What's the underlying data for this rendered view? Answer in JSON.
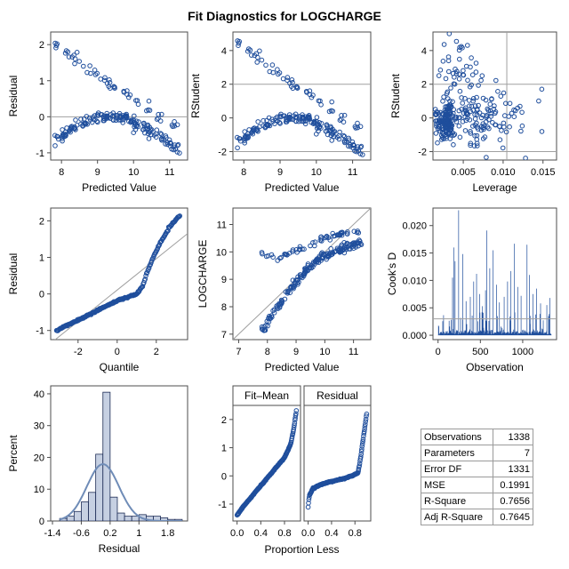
{
  "figure": {
    "title": "Fit Diagnostics for LOGCHARGE"
  },
  "colors": {
    "marker": "#1f4e9c",
    "ref_line": "#a0a0a0",
    "hist_fill": "#c6d0e2",
    "hist_edge": "#1c2b55",
    "normal_curve": "#6f8cb7",
    "needle": "#1f4e9c"
  },
  "chart_data": [
    {
      "id": "resid-vs-pred",
      "type": "scatter",
      "xlabel": "Predicted Value",
      "ylabel": "Residual",
      "xlim": [
        7.7,
        11.5
      ],
      "ylim": [
        -1.2,
        2.35
      ],
      "xticks": [
        "8",
        "9",
        "10",
        "11"
      ],
      "yticks": [
        "-1",
        "0",
        "1",
        "2"
      ],
      "xtick_values": [
        8,
        9,
        10,
        11
      ],
      "ytick_values": [
        -1,
        0,
        1,
        2
      ],
      "ref_lines": {
        "y": [
          0
        ]
      },
      "bands": [
        {
          "x": [
            7.8,
            8.2,
            8.8,
            9.3,
            9.8,
            10.3,
            10.8,
            11.3
          ],
          "y": [
            -0.72,
            -0.38,
            -0.12,
            0.02,
            -0.05,
            -0.3,
            -0.6,
            -0.92
          ],
          "n": 170,
          "spread": 0.14
        },
        {
          "x": [
            7.8,
            8.3,
            8.8,
            9.3,
            9.8,
            10.3,
            10.8,
            11.3
          ],
          "y": [
            2.05,
            1.7,
            1.3,
            0.95,
            0.6,
            0.3,
            -0.05,
            -0.4
          ],
          "n": 55,
          "spread": 0.14
        }
      ]
    },
    {
      "id": "rstudent-vs-pred",
      "type": "scatter",
      "xlabel": "Predicted Value",
      "ylabel": "RStudent",
      "xlim": [
        7.7,
        11.5
      ],
      "ylim": [
        -2.5,
        5.1
      ],
      "xticks": [
        "8",
        "9",
        "10",
        "11"
      ],
      "yticks": [
        "-2",
        "0",
        "2",
        "4"
      ],
      "xtick_values": [
        8,
        9,
        10,
        11
      ],
      "ytick_values": [
        -2,
        0,
        2,
        4
      ],
      "ref_lines": {
        "y": [
          -2,
          2
        ]
      },
      "bands": [
        {
          "x": [
            7.8,
            8.2,
            8.8,
            9.3,
            9.8,
            10.3,
            10.8,
            11.3
          ],
          "y": [
            -1.6,
            -0.85,
            -0.27,
            0.04,
            -0.11,
            -0.67,
            -1.35,
            -2.0
          ],
          "n": 170,
          "spread": 0.3
        },
        {
          "x": [
            7.8,
            8.3,
            8.8,
            9.3,
            9.8,
            10.3,
            10.8,
            11.3
          ],
          "y": [
            4.6,
            3.8,
            2.9,
            2.1,
            1.35,
            0.67,
            -0.1,
            -0.9
          ],
          "n": 55,
          "spread": 0.3
        }
      ]
    },
    {
      "id": "rstudent-vs-leverage",
      "type": "scatter",
      "xlabel": "Leverage",
      "ylabel": "RStudent",
      "xlim": [
        0.0012,
        0.0167
      ],
      "ylim": [
        -2.5,
        5.1
      ],
      "xticks": [
        "0.005",
        "0.010",
        "0.015"
      ],
      "yticks": [
        "-2",
        "0",
        "2",
        "4"
      ],
      "xtick_values": [
        0.005,
        0.01,
        0.015
      ],
      "ytick_values": [
        -2,
        0,
        2,
        4
      ],
      "ref_lines": {
        "y": [
          -2,
          2
        ],
        "x": [
          0.01046
        ]
      },
      "clouds": [
        {
          "cx": 0.0028,
          "cy": -0.2,
          "sx": 0.0006,
          "sy": 0.55,
          "n": 150
        },
        {
          "cx": 0.0065,
          "cy": -0.1,
          "sx": 0.002,
          "sy": 0.9,
          "n": 110
        },
        {
          "cx": 0.0045,
          "cy": 2.7,
          "sx": 0.0015,
          "sy": 1.0,
          "n": 45
        },
        {
          "cx": 0.012,
          "cy": 0.2,
          "sx": 0.0018,
          "sy": 1.0,
          "n": 22
        }
      ]
    },
    {
      "id": "qq-residual",
      "type": "scatter",
      "xlabel": "Quantile",
      "ylabel": "Residual",
      "xlim": [
        -3.4,
        3.6
      ],
      "ylim": [
        -1.25,
        2.35
      ],
      "xticks": [
        "-2",
        "0",
        "2"
      ],
      "yticks": [
        "-1",
        "0",
        "1",
        "2"
      ],
      "xtick_values": [
        -2,
        0,
        2
      ],
      "ytick_values": [
        -1,
        0,
        1,
        2
      ],
      "ref_line_diag": {
        "x": [
          -3.4,
          3.6
        ],
        "y": [
          -1.35,
          1.65
        ]
      },
      "curve": {
        "x": [
          -3.1,
          -2.0,
          -1.0,
          0.0,
          1.0,
          1.3,
          1.5,
          1.8,
          2.2,
          2.7,
          3.2
        ],
        "y": [
          -1.0,
          -0.72,
          -0.45,
          -0.18,
          0.0,
          0.2,
          0.55,
          0.95,
          1.4,
          1.85,
          2.15
        ]
      }
    },
    {
      "id": "obs-vs-pred",
      "type": "scatter",
      "xlabel": "Predicted Value",
      "ylabel": "LOGCHARGE",
      "xlim": [
        6.8,
        11.6
      ],
      "ylim": [
        6.8,
        11.6
      ],
      "xticks": [
        "7",
        "8",
        "9",
        "10",
        "11"
      ],
      "yticks": [
        "7",
        "8",
        "9",
        "10",
        "11"
      ],
      "xtick_values": [
        7,
        8,
        9,
        10,
        11
      ],
      "ytick_values": [
        7,
        8,
        9,
        10,
        11
      ],
      "ref_line_diag": {
        "x": [
          6.8,
          11.6
        ],
        "y": [
          6.8,
          11.6
        ]
      },
      "bands": [
        {
          "x": [
            7.8,
            8.3,
            8.8,
            9.3,
            9.8,
            10.3,
            10.8,
            11.3
          ],
          "y": [
            7.1,
            7.9,
            8.65,
            9.3,
            9.75,
            10.0,
            10.2,
            10.35
          ],
          "n": 180,
          "spread": 0.14
        },
        {
          "x": [
            7.8,
            8.3,
            8.8,
            9.3,
            9.8,
            10.3,
            10.8,
            11.3
          ],
          "y": [
            9.95,
            9.8,
            9.9,
            10.2,
            10.45,
            10.6,
            10.75,
            10.8
          ],
          "n": 60,
          "spread": 0.12
        }
      ]
    },
    {
      "id": "cooks-d",
      "type": "needle",
      "xlabel": "Observation",
      "ylabel": "Cook's D",
      "xlim": [
        -60,
        1400
      ],
      "ylim": [
        -0.0008,
        0.0232
      ],
      "xticks": [
        "0",
        "500",
        "1000"
      ],
      "yticks": [
        "0.000",
        "0.005",
        "0.010",
        "0.015",
        "0.020"
      ],
      "xtick_values": [
        0,
        500,
        1000
      ],
      "ytick_values": [
        0,
        0.005,
        0.01,
        0.015,
        0.02
      ],
      "ref_lines": {
        "y": [
          0.003
        ]
      },
      "n_obs": 1338,
      "baseline_max": 0.0012,
      "spikes": [
        {
          "obs": 170,
          "value": 0.0105
        },
        {
          "obs": 185,
          "value": 0.016
        },
        {
          "obs": 200,
          "value": 0.0135
        },
        {
          "obs": 243,
          "value": 0.0228
        },
        {
          "obs": 290,
          "value": 0.0148
        },
        {
          "obs": 330,
          "value": 0.0062
        },
        {
          "obs": 380,
          "value": 0.007
        },
        {
          "obs": 420,
          "value": 0.0098
        },
        {
          "obs": 455,
          "value": 0.0112
        },
        {
          "obs": 490,
          "value": 0.0075
        },
        {
          "obs": 525,
          "value": 0.0053
        },
        {
          "obs": 560,
          "value": 0.0082
        },
        {
          "obs": 577,
          "value": 0.0191
        },
        {
          "obs": 610,
          "value": 0.0122
        },
        {
          "obs": 650,
          "value": 0.0155
        },
        {
          "obs": 690,
          "value": 0.0092
        },
        {
          "obs": 725,
          "value": 0.006
        },
        {
          "obs": 780,
          "value": 0.007
        },
        {
          "obs": 820,
          "value": 0.0098
        },
        {
          "obs": 860,
          "value": 0.0117
        },
        {
          "obs": 902,
          "value": 0.0167
        },
        {
          "obs": 940,
          "value": 0.0088
        },
        {
          "obs": 980,
          "value": 0.0072
        },
        {
          "obs": 1050,
          "value": 0.0165
        },
        {
          "obs": 1080,
          "value": 0.011
        },
        {
          "obs": 1120,
          "value": 0.0075
        },
        {
          "obs": 1165,
          "value": 0.0085
        },
        {
          "obs": 1210,
          "value": 0.0058
        },
        {
          "obs": 1285,
          "value": 0.0055
        },
        {
          "obs": 1320,
          "value": 0.0068
        }
      ]
    },
    {
      "id": "residual-histogram",
      "type": "bar",
      "xlabel": "Residual",
      "ylabel": "Percent",
      "xlim": [
        -1.45,
        2.35
      ],
      "ylim": [
        0,
        42.5
      ],
      "xticks": [
        "-1.4",
        "-0.6",
        "0.2",
        "1",
        "1.8"
      ],
      "yticks": [
        "0",
        "10",
        "20",
        "30",
        "40"
      ],
      "xtick_values": [
        -1.4,
        -0.6,
        0.2,
        1.0,
        1.8
      ],
      "ytick_values": [
        0,
        10,
        20,
        30,
        40
      ],
      "bin_edges": [
        -1.2,
        -1.0,
        -0.8,
        -0.6,
        -0.4,
        -0.2,
        0.0,
        0.2,
        0.4,
        0.6,
        0.8,
        1.0,
        1.2,
        1.4,
        1.6,
        1.8,
        2.0,
        2.2
      ],
      "values": [
        0.8,
        1.5,
        3.0,
        6.0,
        9.0,
        21.0,
        40.5,
        7.5,
        2.5,
        1.5,
        1.5,
        2.0,
        1.5,
        1.5,
        1.0,
        0.5,
        0.5
      ],
      "normal_curve": {
        "mean": 0.0,
        "sd": 0.446,
        "bin_width": 0.2
      }
    },
    {
      "id": "rf-plot",
      "type": "scatter",
      "panels": [
        "Fit–Mean",
        "Residual"
      ],
      "xlabel": "Proportion Less",
      "xlim": [
        -0.07,
        1.07
      ],
      "ylim": [
        -1.6,
        2.5
      ],
      "xticks": [
        "0.0",
        "0.4",
        "0.8"
      ],
      "yticks": [
        "-1",
        "0",
        "1",
        "2"
      ],
      "xtick_values": [
        0,
        0.4,
        0.8
      ],
      "ytick_values": [
        -1,
        0,
        1,
        2
      ],
      "curves": [
        {
          "x": [
            0.0,
            0.1,
            0.3,
            0.5,
            0.7,
            0.8,
            0.9,
            0.95,
            1.0
          ],
          "y": [
            -1.4,
            -1.1,
            -0.6,
            -0.1,
            0.4,
            0.65,
            1.1,
            1.6,
            2.3
          ]
        },
        {
          "x": [
            0.0,
            0.02,
            0.08,
            0.2,
            0.4,
            0.6,
            0.75,
            0.85,
            0.88,
            0.92,
            0.96,
            1.0
          ],
          "y": [
            -1.1,
            -0.7,
            -0.45,
            -0.32,
            -0.2,
            -0.1,
            0.0,
            0.1,
            0.4,
            1.0,
            1.6,
            2.2
          ]
        }
      ]
    }
  ],
  "fit_statistics": {
    "rows": [
      {
        "label": "Observations",
        "value": "1338"
      },
      {
        "label": "Parameters",
        "value": "7"
      },
      {
        "label": "Error DF",
        "value": "1331"
      },
      {
        "label": "MSE",
        "value": "0.1991"
      },
      {
        "label": "R-Square",
        "value": "0.7656"
      },
      {
        "label": "Adj R-Square",
        "value": "0.7645"
      }
    ]
  }
}
